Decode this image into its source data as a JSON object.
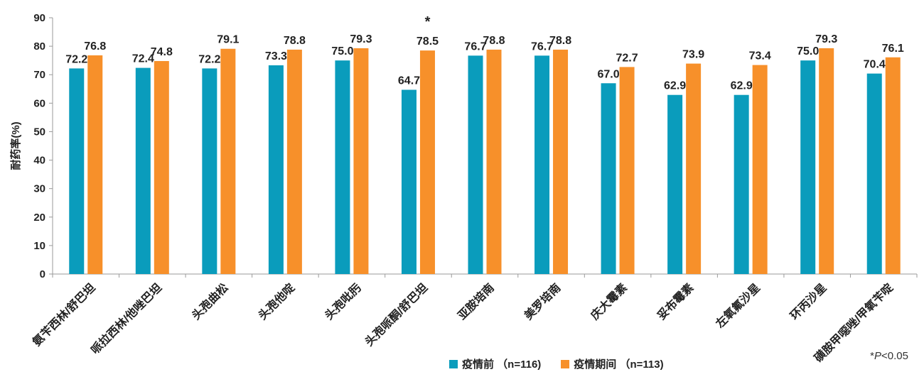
{
  "chart_data": {
    "type": "bar",
    "title": "",
    "xlabel": "",
    "ylabel": "耐药率(%)",
    "ylim": [
      0,
      90
    ],
    "yticks": [
      0,
      10,
      20,
      30,
      40,
      50,
      60,
      70,
      80,
      90
    ],
    "grid": false,
    "legend_position": "bottom",
    "categories": [
      "氨苄西林/舒巴坦",
      "哌拉西林/他唑巴坦",
      "头孢曲松",
      "头孢他啶",
      "头孢吡肟",
      "头孢哌酮/舒巴坦",
      "亚胺培南",
      "美罗培南",
      "庆大霉素",
      "妥布霉素",
      "左氧氟沙星",
      "环丙沙星",
      "磺胺甲噁唑/甲氧苄啶"
    ],
    "series": [
      {
        "name": "疫情前 （n=116)",
        "color": "#0a9cbc",
        "values": [
          72.2,
          72.4,
          72.2,
          73.3,
          75.0,
          64.7,
          76.7,
          76.7,
          67.0,
          62.9,
          62.9,
          75.0,
          70.4
        ],
        "labels": [
          "72.2",
          "72.4",
          "72.2",
          "73.3",
          "75.0",
          "64.7",
          "76.7",
          "76.7",
          "67.0",
          "62.9",
          "62.9",
          "75.0",
          "70.4"
        ]
      },
      {
        "name": "疫情期间 （n=113)",
        "color": "#f7902a",
        "values": [
          76.8,
          74.8,
          79.1,
          78.8,
          79.3,
          78.5,
          78.8,
          78.8,
          72.7,
          73.9,
          73.4,
          79.3,
          76.1
        ],
        "labels": [
          "76.8",
          "74.8",
          "79.1",
          "78.8",
          "79.3",
          "78.5",
          "78.8",
          "78.8",
          "72.7",
          "73.9",
          "73.4",
          "79.3",
          "76.1"
        ]
      }
    ],
    "annotations": [
      {
        "category_index": 5,
        "text": "*"
      }
    ]
  },
  "note": {
    "prefix": "*",
    "p": "P",
    "suffix": "<0.05"
  }
}
